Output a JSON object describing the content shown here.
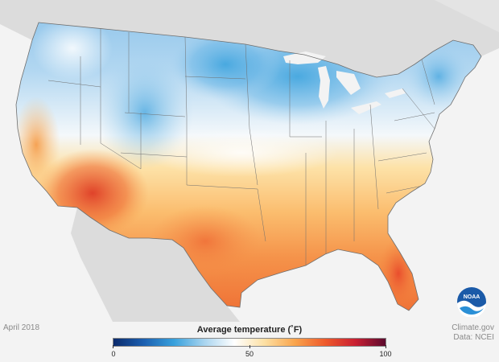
{
  "map": {
    "period": "April 2018",
    "credit_line1": "Climate.gov",
    "credit_line2": "Data: NCEI",
    "logo_text": "NOAA",
    "colors": {
      "background": "#f3f3f3",
      "land_outside": "#dcdcdc",
      "state_border": "#6e6e6e"
    }
  },
  "legend": {
    "title": "Average temperature (˚F)",
    "min": 0,
    "mid": 50,
    "max": 100,
    "tick_labels": [
      "0",
      "50",
      "100"
    ],
    "color_stops": [
      "#0b2a6b",
      "#1b5fb0",
      "#37a0dc",
      "#a8d4ef",
      "#ffffff",
      "#fde0a3",
      "#f9a44c",
      "#ee5a2b",
      "#c91f32",
      "#5c0a2e"
    ]
  }
}
